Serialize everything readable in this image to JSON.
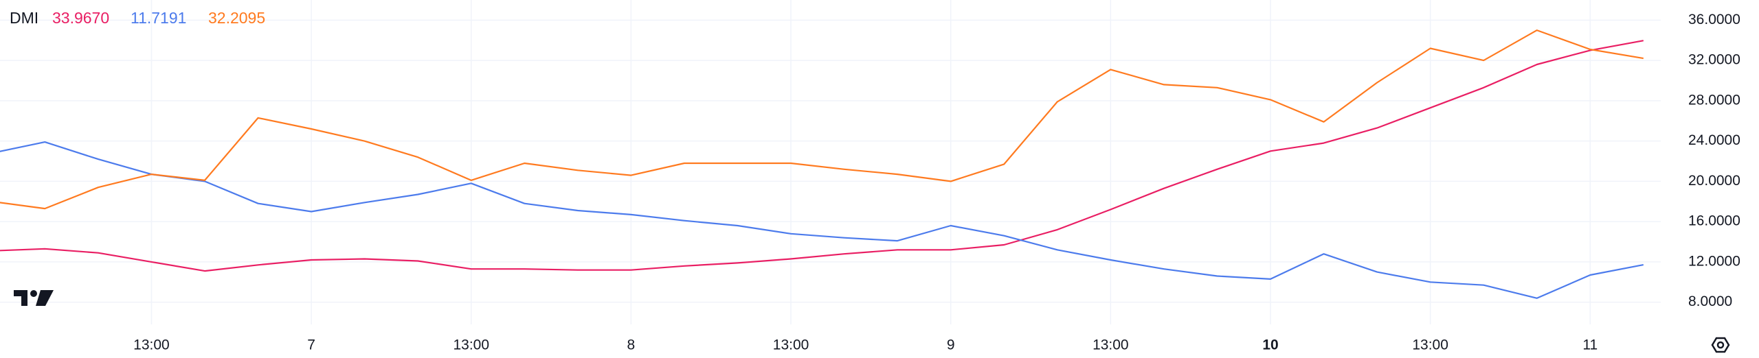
{
  "chart_data": {
    "type": "line",
    "title": "DMI",
    "categories": [
      null,
      null,
      null,
      "13:00",
      null,
      null,
      "7",
      null,
      null,
      "13:00",
      null,
      null,
      "8",
      null,
      null,
      "13:00",
      null,
      null,
      "9",
      null,
      null,
      "13:00",
      null,
      null,
      "10",
      null,
      null,
      "13:00",
      null,
      null,
      "11",
      null
    ],
    "series": [
      {
        "color": "#e91e63",
        "legend_label": "33.9670",
        "values": [
          13.1,
          13.3,
          12.9,
          12.0,
          11.1,
          11.7,
          12.2,
          12.3,
          12.1,
          11.3,
          11.3,
          11.2,
          11.2,
          11.6,
          11.9,
          12.3,
          12.8,
          13.2,
          13.2,
          13.7,
          15.2,
          17.2,
          19.3,
          21.2,
          23.0,
          23.8,
          25.3,
          27.3,
          29.3,
          31.6,
          33.0,
          33.967
        ]
      },
      {
        "color": "#4c7bec",
        "legend_label": "11.7191",
        "values": [
          22.8,
          23.9,
          22.2,
          20.7,
          20.0,
          17.8,
          17.0,
          17.9,
          18.7,
          19.8,
          17.8,
          17.1,
          16.7,
          16.1,
          15.6,
          14.8,
          14.4,
          14.1,
          15.6,
          14.6,
          13.2,
          12.2,
          11.3,
          10.6,
          10.3,
          12.8,
          11.0,
          10.0,
          9.7,
          8.4,
          10.7,
          11.7191
        ]
      },
      {
        "color": "#ff7a1f",
        "legend_label": "32.2095",
        "values": [
          18.0,
          17.3,
          19.4,
          20.7,
          20.1,
          26.3,
          25.2,
          24.0,
          22.4,
          20.1,
          21.8,
          21.1,
          20.6,
          21.8,
          21.8,
          21.8,
          21.2,
          20.7,
          20.0,
          21.7,
          27.9,
          31.1,
          29.6,
          29.3,
          28.1,
          25.9,
          29.8,
          33.2,
          32.0,
          35.0,
          33.1,
          32.2095
        ]
      }
    ],
    "ylim": [
      5.8,
      38
    ],
    "yticks": [
      {
        "value": 8,
        "label": "8.0000"
      },
      {
        "value": 12,
        "label": "12.0000"
      },
      {
        "value": 16,
        "label": "16.0000"
      },
      {
        "value": 20,
        "label": "20.0000"
      },
      {
        "value": 24,
        "label": "24.0000"
      },
      {
        "value": 28,
        "label": "28.0000"
      },
      {
        "value": 32,
        "label": "32.0000"
      },
      {
        "value": 36,
        "label": "36.0000"
      }
    ],
    "grid": true
  }
}
